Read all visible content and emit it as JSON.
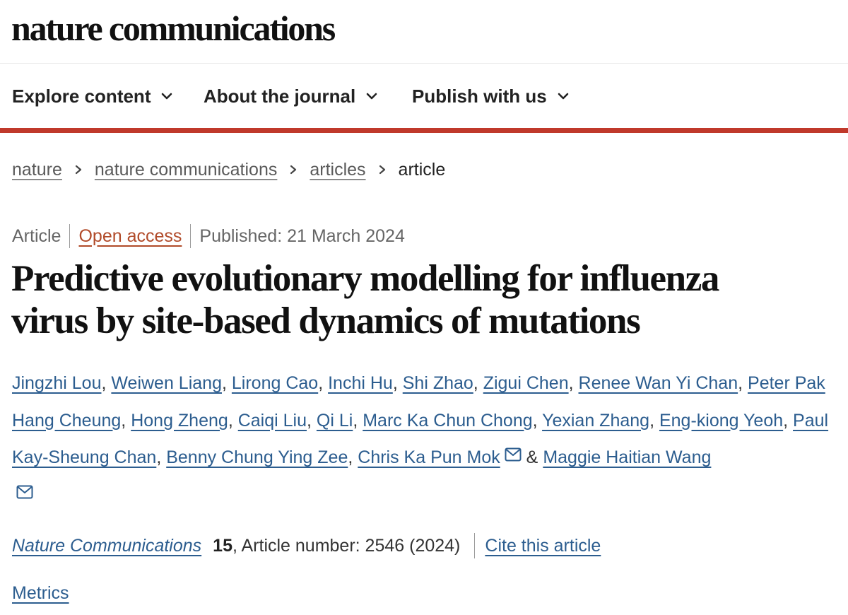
{
  "site": {
    "logo": "nature communications"
  },
  "nav": {
    "items": [
      {
        "label": "Explore content"
      },
      {
        "label": "About the journal"
      },
      {
        "label": "Publish with us"
      }
    ]
  },
  "breadcrumb": {
    "items": [
      "nature",
      "nature communications",
      "articles"
    ],
    "current": "article"
  },
  "meta": {
    "type": "Article",
    "access": "Open access",
    "published": "Published: 21 March 2024"
  },
  "article": {
    "title_line1": "Predictive evolutionary modelling for influenza",
    "title_line2": "virus by site-based dynamics of mutations",
    "authors": [
      "Jingzhi Lou",
      "Weiwen Liang",
      "Lirong Cao",
      "Inchi Hu",
      "Shi Zhao",
      "Zigui Chen",
      "Renee Wan Yi Chan",
      "Peter Pak Hang Cheung",
      "Hong Zheng",
      "Caiqi Liu",
      "Qi Li",
      "Marc Ka Chun Chong",
      "Yexian Zhang",
      "Eng-kiong Yeoh",
      "Paul Kay-Sheung Chan",
      "Benny Chung Ying Zee",
      "Chris Ka Pun Mok",
      "Maggie Haitian Wang"
    ],
    "separator": ", ",
    "ampersand": " & "
  },
  "journal": {
    "name": "Nature Communications",
    "volume": "15",
    "article_number": ", Article number: 2546 (2024)",
    "cite_label": "Cite this article",
    "metrics_label": "Metrics"
  },
  "icons": {
    "chevron": "chevron-down-icon",
    "breadcrumb_sep": "chevron-right-icon",
    "mail": "mail-icon"
  },
  "colors": {
    "accent_red": "#c0392b",
    "link_blue": "#2c5d8f",
    "open_access": "#b14a29"
  }
}
